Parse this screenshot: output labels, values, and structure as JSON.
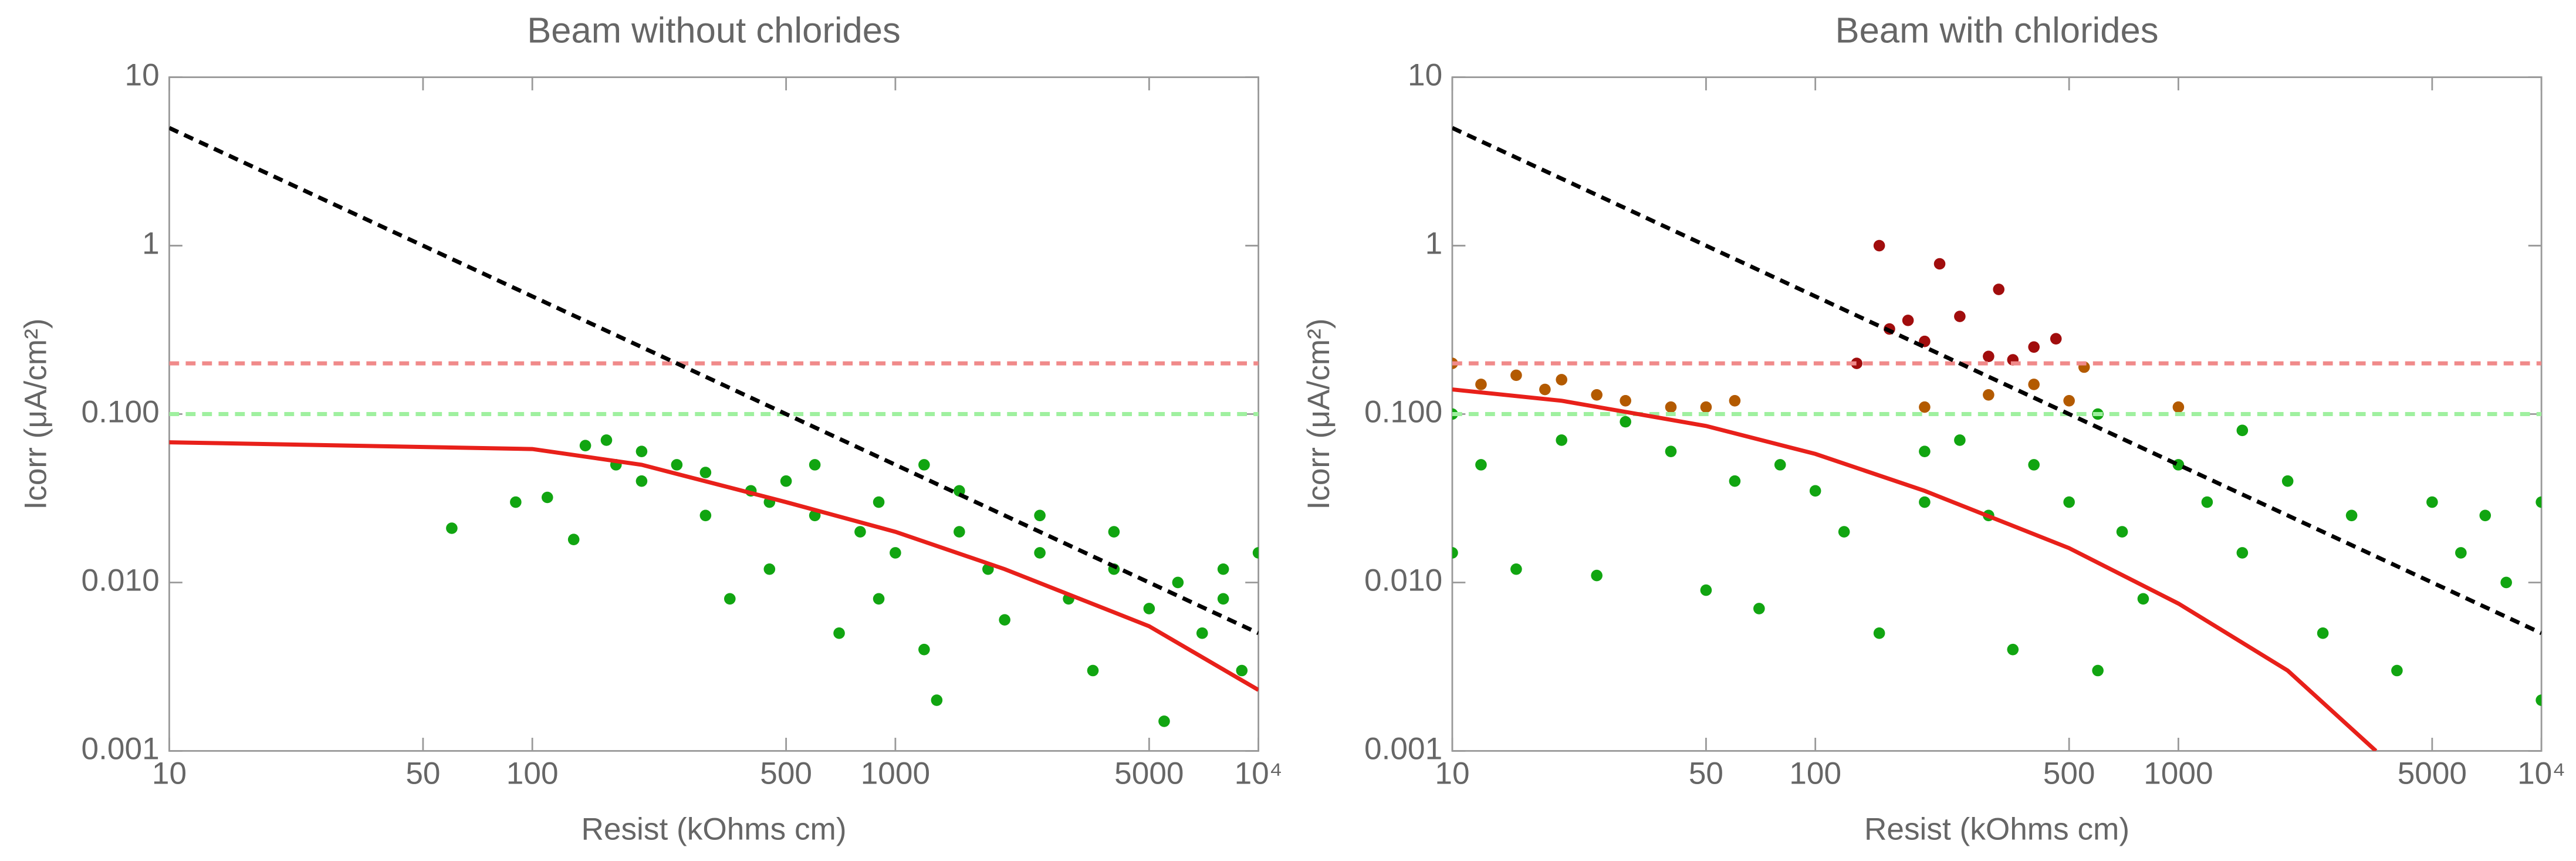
{
  "chart_data": [
    {
      "type": "scatter",
      "title": "Beam without chlorides",
      "x_label": "Resist (kOhms cm)",
      "y_label": "Icorr (μA/cm²)",
      "log_x": true,
      "log_y": true,
      "xlim": [
        10,
        10000
      ],
      "ylim": [
        0.001,
        10
      ],
      "xticks": [
        10,
        50,
        100,
        500,
        1000,
        5000,
        {
          "value": 10000,
          "label": "10⁴"
        }
      ],
      "yticks": [
        0.001,
        {
          "value": 0.01,
          "label": "0.010"
        },
        {
          "value": 0.1,
          "label": "0.100"
        },
        1,
        10
      ],
      "series": [
        {
          "mode": "markers",
          "color": "#11a511",
          "x": [
            60,
            90,
            110,
            130,
            140,
            160,
            200,
            250,
            300,
            350,
            400,
            450,
            500,
            600,
            700,
            800,
            900,
            1000,
            1200,
            1300,
            1500,
            1800,
            2000,
            2500,
            3000,
            3500,
            4000,
            5000,
            5500,
            6000,
            7000,
            8000,
            9000,
            10000,
            300,
            600,
            1500,
            2500,
            4000,
            8000,
            450,
            900,
            200,
            170,
            1200
          ],
          "values": [
            0.021,
            0.03,
            0.032,
            0.018,
            0.065,
            0.07,
            0.06,
            0.05,
            0.045,
            0.008,
            0.035,
            0.03,
            0.04,
            0.025,
            0.005,
            0.02,
            0.03,
            0.015,
            0.004,
            0.002,
            0.02,
            0.012,
            0.006,
            0.015,
            0.008,
            0.003,
            0.012,
            0.007,
            0.0015,
            0.01,
            0.005,
            0.008,
            0.003,
            0.015,
            0.025,
            0.05,
            0.035,
            0.025,
            0.02,
            0.012,
            0.012,
            0.008,
            0.04,
            0.05,
            0.05
          ]
        },
        {
          "mode": "line",
          "dash": true,
          "color": "#f08a8a",
          "x": [
            10,
            10000
          ],
          "values": [
            0.2,
            0.2
          ]
        },
        {
          "mode": "line",
          "dash": true,
          "color": "#9ff09f",
          "x": [
            10,
            10000
          ],
          "values": [
            0.1,
            0.1
          ]
        },
        {
          "mode": "line",
          "dash": true,
          "color": "#000000",
          "x": [
            10,
            10000
          ],
          "values": [
            5,
            0.005
          ]
        },
        {
          "mode": "line",
          "dash": false,
          "color": "#e8201a",
          "x": [
            10,
            100,
            200,
            500,
            1000,
            2000,
            5000,
            10000
          ],
          "values": [
            0.068,
            0.062,
            0.05,
            0.03,
            0.02,
            0.012,
            0.0055,
            0.0023
          ]
        }
      ]
    },
    {
      "type": "scatter",
      "title": "Beam with chlorides",
      "x_label": "Resist (kOhms cm)",
      "y_label": "Icorr (μA/cm²)",
      "log_x": true,
      "log_y": true,
      "xlim": [
        10,
        10000
      ],
      "ylim": [
        0.001,
        10
      ],
      "xticks": [
        10,
        50,
        100,
        500,
        1000,
        5000,
        {
          "value": 10000,
          "label": "10⁴"
        }
      ],
      "yticks": [
        0.001,
        {
          "value": 0.01,
          "label": "0.010"
        },
        {
          "value": 0.1,
          "label": "0.100"
        },
        1,
        10
      ],
      "series": [
        {
          "mode": "markers",
          "color": "#11a511",
          "x": [
            10,
            10,
            12,
            15,
            20,
            25,
            30,
            40,
            50,
            60,
            70,
            80,
            100,
            120,
            150,
            200,
            250,
            300,
            350,
            400,
            500,
            600,
            700,
            800,
            1000,
            1200,
            1500,
            2000,
            2500,
            3000,
            4000,
            5000,
            6000,
            7000,
            8000,
            10000,
            10000,
            1500,
            600,
            200
          ],
          "values": [
            0.015,
            0.1,
            0.05,
            0.012,
            0.07,
            0.011,
            0.09,
            0.06,
            0.009,
            0.04,
            0.007,
            0.05,
            0.035,
            0.02,
            0.005,
            0.03,
            0.07,
            0.025,
            0.004,
            0.05,
            0.03,
            0.003,
            0.02,
            0.008,
            0.05,
            0.03,
            0.015,
            0.04,
            0.005,
            0.025,
            0.003,
            0.03,
            0.015,
            0.025,
            0.01,
            0.002,
            0.03,
            0.08,
            0.1,
            0.06
          ]
        },
        {
          "mode": "markers",
          "color": "#b35a00",
          "x": [
            10,
            12,
            15,
            18,
            20,
            25,
            30,
            40,
            50,
            60,
            200,
            300,
            400,
            500,
            550,
            1000
          ],
          "values": [
            0.2,
            0.15,
            0.17,
            0.14,
            0.16,
            0.13,
            0.12,
            0.11,
            0.11,
            0.12,
            0.11,
            0.13,
            0.15,
            0.12,
            0.19,
            0.11
          ]
        },
        {
          "mode": "markers",
          "color": "#a10d0d",
          "x": [
            150,
            160,
            180,
            220,
            250,
            300,
            320,
            400,
            460,
            130,
            350,
            200
          ],
          "values": [
            1.0,
            0.32,
            0.36,
            0.78,
            0.38,
            0.22,
            0.55,
            0.25,
            0.28,
            0.2,
            0.21,
            0.27
          ]
        },
        {
          "mode": "line",
          "dash": true,
          "color": "#f08a8a",
          "x": [
            10,
            10000
          ],
          "values": [
            0.2,
            0.2
          ]
        },
        {
          "mode": "line",
          "dash": true,
          "color": "#9ff09f",
          "x": [
            10,
            10000
          ],
          "values": [
            0.1,
            0.1
          ]
        },
        {
          "mode": "line",
          "dash": true,
          "color": "#000000",
          "x": [
            10,
            10000
          ],
          "values": [
            5,
            0.005
          ]
        },
        {
          "mode": "line",
          "dash": false,
          "color": "#e8201a",
          "x": [
            10,
            20,
            50,
            100,
            200,
            500,
            1000,
            2000,
            3500
          ],
          "values": [
            0.14,
            0.12,
            0.085,
            0.058,
            0.035,
            0.016,
            0.0075,
            0.003,
            0.001
          ]
        }
      ]
    }
  ]
}
